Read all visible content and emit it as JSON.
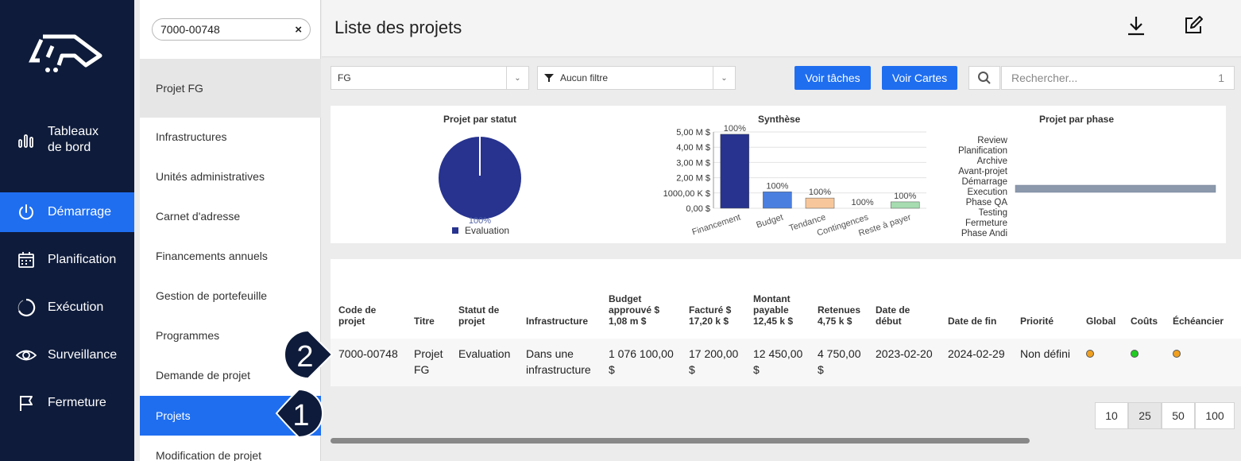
{
  "app": {
    "logo_name": "logo-icon"
  },
  "leftnav": {
    "items": [
      {
        "key": "dashboards",
        "label_line1": "Tableaux",
        "label_line2": "de bord",
        "icon": "bar-chart-icon"
      },
      {
        "key": "demarrage",
        "label": "Démarrage",
        "icon": "power-icon",
        "active": true
      },
      {
        "key": "planification",
        "label": "Planification",
        "icon": "calendar-icon"
      },
      {
        "key": "execution",
        "label": "Exécution",
        "icon": "progress-ring-icon"
      },
      {
        "key": "surveillance",
        "label": "Surveillance",
        "icon": "eye-icon"
      },
      {
        "key": "fermeture",
        "label": "Fermeture",
        "icon": "flag-icon"
      }
    ]
  },
  "subnav": {
    "search_value": "7000-00748",
    "clear_label": "×",
    "current_project": "Projet FG",
    "items": [
      "Infrastructures",
      "Unités administratives",
      "Carnet d'adresse",
      "Financements annuels",
      "Gestion de portefeuille",
      "Programmes",
      "Demande de projet",
      "Projets",
      "Modification de projet"
    ]
  },
  "header": {
    "title": "Liste des projets"
  },
  "filters": {
    "group_value": "FG",
    "filter_value": "Aucun filtre",
    "btn_tasks": "Voir tâches",
    "btn_cards": "Voir Cartes",
    "search_placeholder": "Rechercher...",
    "search_count": "1"
  },
  "charts": {
    "status": {
      "title": "Projet par statut",
      "slice_label": "100%",
      "legend": "Evaluation",
      "color": "#27338f"
    },
    "synthese": {
      "title": "Synthèse"
    },
    "phase": {
      "title": "Projet par phase"
    }
  },
  "chart_data": [
    {
      "type": "pie",
      "title": "Projet par statut",
      "labels": [
        "Evaluation"
      ],
      "values": [
        100
      ],
      "legend_position": "bottom"
    },
    {
      "type": "bar",
      "title": "Synthèse",
      "categories": [
        "Financement",
        "Budget",
        "Tendance",
        "Contingences",
        "Reste à payer"
      ],
      "values": [
        4850000,
        1076100,
        670000,
        0,
        420000
      ],
      "data_labels": [
        "100%",
        "100%",
        "100%",
        "100%",
        "100%"
      ],
      "colors": [
        "#27338f",
        "#4a7fe0",
        "#f7c79b",
        "#cfcfcf",
        "#a6dcb0"
      ],
      "yticks": [
        "0,00 $",
        "1000,00 K $",
        "2,00 M $",
        "3,00 M $",
        "4,00 M $",
        "5,00 M $"
      ],
      "ylim": [
        0,
        5000000
      ],
      "grid": true
    },
    {
      "type": "bar",
      "orientation": "horizontal",
      "title": "Projet par phase",
      "categories": [
        "Review",
        "Planification",
        "Archive",
        "Avant-projet",
        "Démarrage",
        "Execution",
        "Phase QA",
        "Testing",
        "Fermeture",
        "Phase Andi"
      ],
      "values": [
        0,
        0,
        0,
        0,
        0,
        1,
        0,
        0,
        0,
        0
      ],
      "color": "#8c99ad"
    }
  ],
  "table": {
    "headers": {
      "code": [
        "Code de",
        "projet"
      ],
      "titre": [
        "Titre"
      ],
      "statut": [
        "Statut de",
        "projet"
      ],
      "infra": [
        "Infrastructure"
      ],
      "budget": [
        "Budget",
        "approuvé $",
        "1,08 m $"
      ],
      "facture": [
        "Facturé $",
        "17,20 k $"
      ],
      "montant": [
        "Montant",
        "payable",
        "12,45 k $"
      ],
      "retenues": [
        "Retenues",
        "4,75 k $"
      ],
      "debut": [
        "Date de",
        "début"
      ],
      "fin": [
        "Date de fin"
      ],
      "priorite": [
        "Priorité"
      ],
      "global": [
        "Global"
      ],
      "couts": [
        "Coûts"
      ],
      "echeancier": [
        "Échéancier"
      ]
    },
    "row": {
      "code": "7000-00748",
      "titre": [
        "Projet",
        "FG"
      ],
      "statut": "Evaluation",
      "infra": [
        "Dans une",
        "infrastructure"
      ],
      "budget": [
        "1 076 100,00",
        "$"
      ],
      "facture": [
        "17 200,00",
        "$"
      ],
      "montant": [
        "12 450,00",
        "$"
      ],
      "retenues": [
        "4 750,00",
        "$"
      ],
      "debut": "2023-02-20",
      "fin": "2024-02-29",
      "priorite": "Non défini",
      "global_color": "#f0a020",
      "couts_color": "#22cc22",
      "echeancier_color": "#f0a020"
    }
  },
  "pagination": {
    "sizes": [
      "10",
      "25",
      "50",
      "100"
    ],
    "selected": "25"
  },
  "callouts": {
    "one": "1",
    "two": "2"
  }
}
